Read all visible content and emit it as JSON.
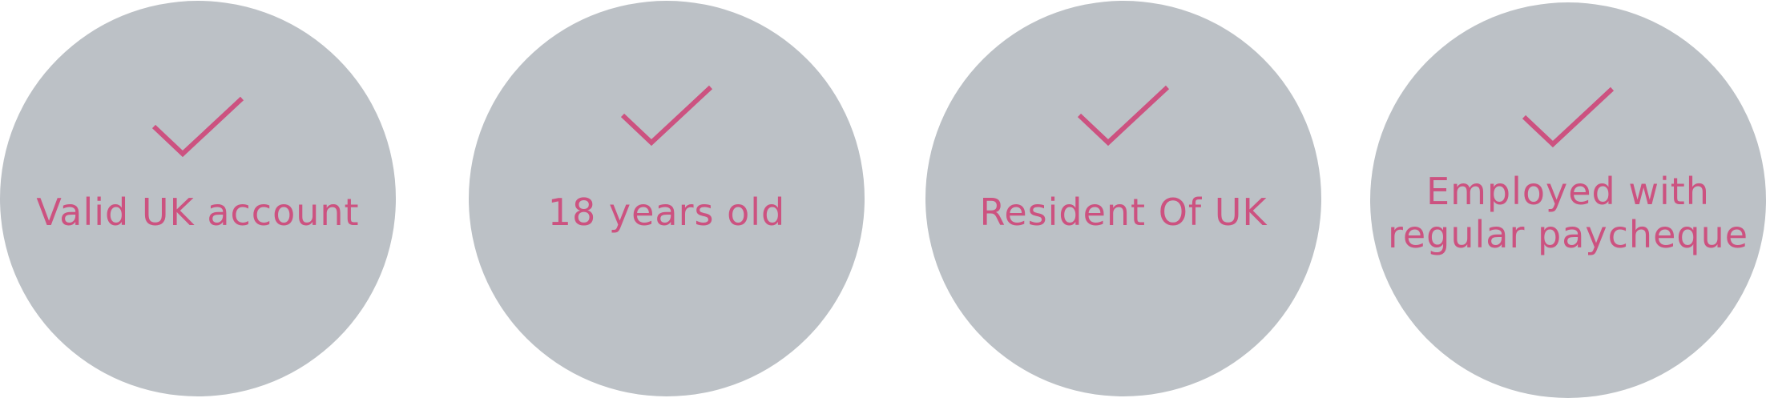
{
  "accent_color": "#cc5280",
  "circle_color": "#bcc1c6",
  "requirements": [
    {
      "icon": "checkmark-icon",
      "lines": [
        "Valid UK account"
      ]
    },
    {
      "icon": "checkmark-icon",
      "lines": [
        "18 years old"
      ]
    },
    {
      "icon": "checkmark-icon",
      "lines": [
        "Resident Of UK"
      ]
    },
    {
      "icon": "checkmark-icon",
      "lines": [
        "Employed with",
        "regular paycheque"
      ]
    }
  ]
}
